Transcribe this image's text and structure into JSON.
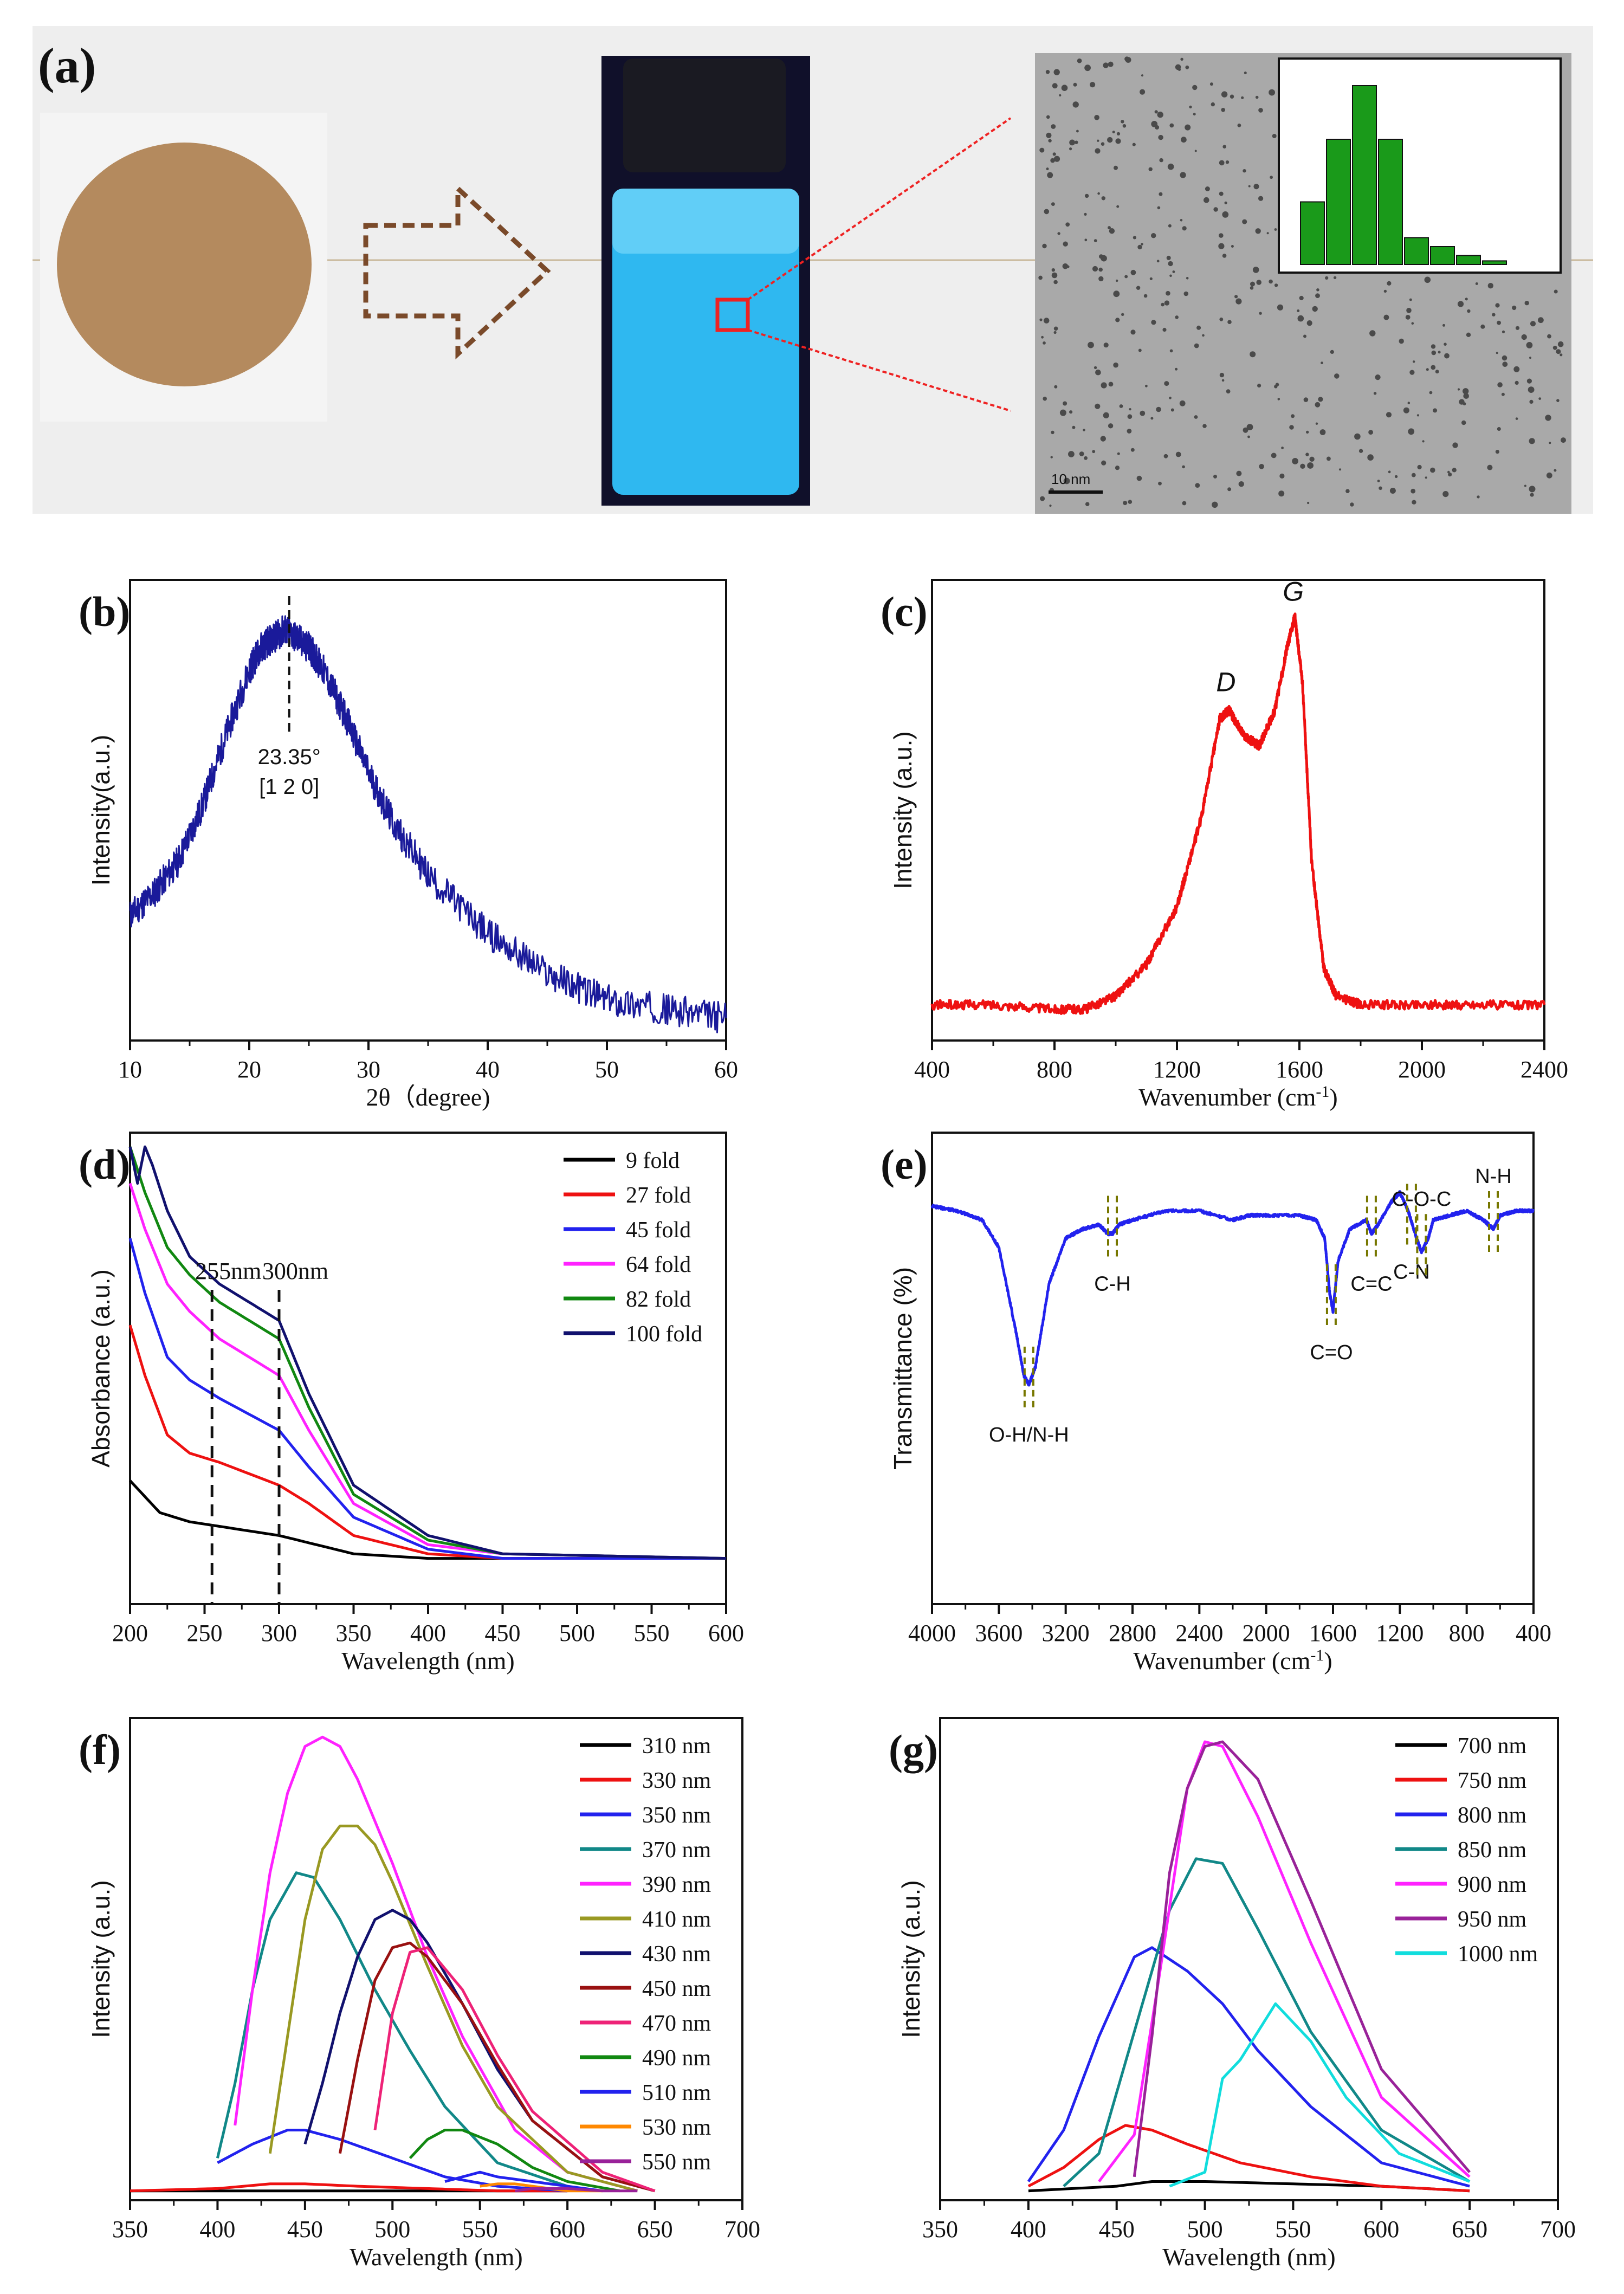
{
  "panel_a": {
    "label": "(a)",
    "tem_scale_text": "10 nm",
    "colors": {
      "powder": "#b48a5e",
      "vial_glow": "#2fb8f0",
      "arrow": "#7a4a2a",
      "bar": "#1a9a1a",
      "zoom": "#ee2222"
    },
    "histogram": {
      "values": [
        0.35,
        0.7,
        1.0,
        0.7,
        0.15,
        0.1,
        0.05,
        0.02
      ]
    }
  },
  "chart_data": [
    {
      "id": "b",
      "panel_label": "(b)",
      "type": "line",
      "xlabel": "2θ（degree)",
      "ylabel": "Intensity(a.u.)",
      "xlim": [
        10,
        60
      ],
      "x_ticks": [
        "10",
        "20",
        "30",
        "40",
        "50",
        "60"
      ],
      "annotation": {
        "x": 23.35,
        "text1": "23.35°",
        "text2": "[1 2 0]"
      },
      "series": [
        {
          "name": "XRD",
          "color": "#1a1a9a",
          "x": [
            10,
            12,
            14,
            16,
            18,
            20,
            21,
            22,
            23,
            24,
            25,
            26,
            28,
            30,
            32,
            35,
            40,
            45,
            50,
            55,
            60
          ],
          "y": [
            0.28,
            0.33,
            0.4,
            0.52,
            0.68,
            0.83,
            0.88,
            0.9,
            0.92,
            0.9,
            0.88,
            0.84,
            0.73,
            0.6,
            0.49,
            0.37,
            0.24,
            0.15,
            0.09,
            0.07,
            0.05
          ]
        }
      ]
    },
    {
      "id": "c",
      "panel_label": "(c)",
      "type": "line",
      "xlabel": "Wavenumber (cm",
      "xlabel_sup": "-1",
      "xlabel_end": ")",
      "ylabel": "Intensity (a.u.)",
      "xlim": [
        400,
        2400
      ],
      "x_ticks": [
        "400",
        "800",
        "1200",
        "1600",
        "2000",
        "2400"
      ],
      "peak_labels": [
        {
          "text": "D",
          "x": 1360
        },
        {
          "text": "G",
          "x": 1580
        }
      ],
      "series": [
        {
          "name": "Raman",
          "color": "#ee1111",
          "x": [
            400,
            600,
            800,
            900,
            1000,
            1100,
            1200,
            1280,
            1340,
            1370,
            1420,
            1470,
            1520,
            1560,
            1585,
            1610,
            1640,
            1680,
            1720,
            1800,
            2000,
            2200,
            2400
          ],
          "y": [
            0.08,
            0.08,
            0.07,
            0.07,
            0.1,
            0.17,
            0.3,
            0.5,
            0.72,
            0.74,
            0.68,
            0.66,
            0.74,
            0.88,
            0.95,
            0.8,
            0.4,
            0.16,
            0.1,
            0.08,
            0.08,
            0.08,
            0.08
          ]
        }
      ]
    },
    {
      "id": "d",
      "panel_label": "(d)",
      "type": "line",
      "xlabel": "Wavelength (nm)",
      "ylabel": "Absorbance (a.u.)",
      "xlim": [
        200,
        600
      ],
      "x_ticks": [
        "200",
        "250",
        "300",
        "350",
        "400",
        "450",
        "500",
        "550",
        "600"
      ],
      "annotations": [
        {
          "x": 255,
          "text": "255nm"
        },
        {
          "x": 300,
          "text": "300nm"
        }
      ],
      "series": [
        {
          "name": "9 fold",
          "color": "#000000",
          "x": [
            200,
            220,
            240,
            260,
            300,
            350,
            400,
            450,
            500,
            600
          ],
          "y": [
            0.27,
            0.2,
            0.18,
            0.17,
            0.15,
            0.11,
            0.1,
            0.1,
            0.1,
            0.1
          ]
        },
        {
          "name": "27 fold",
          "color": "#ee1111",
          "x": [
            200,
            210,
            225,
            240,
            260,
            300,
            320,
            350,
            400,
            450,
            600
          ],
          "y": [
            0.61,
            0.5,
            0.37,
            0.33,
            0.31,
            0.26,
            0.22,
            0.15,
            0.11,
            0.1,
            0.1
          ]
        },
        {
          "name": "45 fold",
          "color": "#2222ee",
          "x": [
            200,
            210,
            225,
            240,
            260,
            300,
            320,
            350,
            400,
            450,
            600
          ],
          "y": [
            0.8,
            0.68,
            0.54,
            0.49,
            0.45,
            0.38,
            0.3,
            0.19,
            0.12,
            0.1,
            0.1
          ]
        },
        {
          "name": "64 fold",
          "color": "#ff22ff",
          "x": [
            200,
            210,
            225,
            240,
            260,
            300,
            320,
            350,
            400,
            450,
            600
          ],
          "y": [
            0.92,
            0.82,
            0.7,
            0.64,
            0.58,
            0.5,
            0.38,
            0.22,
            0.13,
            0.11,
            0.1
          ]
        },
        {
          "name": "82 fold",
          "color": "#118811",
          "x": [
            200,
            210,
            225,
            240,
            260,
            300,
            320,
            350,
            400,
            450,
            600
          ],
          "y": [
            1.0,
            0.9,
            0.78,
            0.72,
            0.66,
            0.58,
            0.43,
            0.24,
            0.14,
            0.11,
            0.1
          ]
        },
        {
          "name": "100 fold",
          "color": "#11116e",
          "x": [
            200,
            205,
            210,
            215,
            225,
            240,
            260,
            300,
            320,
            350,
            400,
            450,
            600
          ],
          "y": [
            1.0,
            0.92,
            1.0,
            0.96,
            0.86,
            0.76,
            0.7,
            0.62,
            0.46,
            0.26,
            0.15,
            0.11,
            0.1
          ]
        }
      ]
    },
    {
      "id": "e",
      "panel_label": "(e)",
      "type": "line",
      "xlabel": "Wavenumber (cm",
      "xlabel_sup": "-1",
      "xlabel_end": ")",
      "ylabel": "Transmittance (%)",
      "xlim": [
        4000,
        400
      ],
      "x_ticks": [
        "4000",
        "3600",
        "3200",
        "2800",
        "2400",
        "2000",
        "1600",
        "1200",
        "800",
        "400"
      ],
      "peak_labels": [
        {
          "text": "O-H/N-H",
          "x": 3420,
          "pos": "below"
        },
        {
          "text": "C-H",
          "x": 2920,
          "pos": "below"
        },
        {
          "text": "C=O",
          "x": 1610,
          "pos": "below"
        },
        {
          "text": "C=C",
          "x": 1370,
          "pos": "below"
        },
        {
          "text": "C-N",
          "x": 1130,
          "pos": "below"
        },
        {
          "text": "C-O-C",
          "x": 1070,
          "pos": "above"
        },
        {
          "text": "N-H",
          "x": 640,
          "pos": "above"
        }
      ],
      "series": [
        {
          "name": "FTIR",
          "color": "#2222ee",
          "x": [
            4000,
            3850,
            3700,
            3600,
            3500,
            3450,
            3420,
            3380,
            3300,
            3200,
            3100,
            3000,
            2950,
            2920,
            2880,
            2800,
            2600,
            2400,
            2200,
            2100,
            2000,
            1800,
            1700,
            1650,
            1620,
            1600,
            1570,
            1500,
            1400,
            1370,
            1330,
            1250,
            1200,
            1150,
            1100,
            1070,
            1030,
            1000,
            900,
            800,
            700,
            640,
            600,
            500,
            400
          ],
          "y": [
            0.87,
            0.86,
            0.84,
            0.78,
            0.6,
            0.5,
            0.48,
            0.52,
            0.7,
            0.8,
            0.82,
            0.83,
            0.81,
            0.81,
            0.83,
            0.84,
            0.86,
            0.86,
            0.84,
            0.85,
            0.85,
            0.85,
            0.84,
            0.8,
            0.68,
            0.64,
            0.75,
            0.82,
            0.84,
            0.81,
            0.83,
            0.88,
            0.9,
            0.86,
            0.8,
            0.77,
            0.8,
            0.84,
            0.85,
            0.86,
            0.84,
            0.82,
            0.85,
            0.86,
            0.86
          ]
        }
      ]
    },
    {
      "id": "f",
      "panel_label": "(f)",
      "type": "line",
      "xlabel": "Wavelength (nm)",
      "ylabel": "Intensity (a.u.)",
      "xlim": [
        350,
        700
      ],
      "x_ticks": [
        "350",
        "400",
        "450",
        "500",
        "550",
        "600",
        "650",
        "700"
      ],
      "series": [
        {
          "name": "310 nm",
          "color": "#000000",
          "x": [
            350,
            400,
            450,
            500,
            550,
            600
          ],
          "y": [
            0.02,
            0.02,
            0.02,
            0.02,
            0.02,
            0.02
          ]
        },
        {
          "name": "330 nm",
          "color": "#ee1111",
          "x": [
            350,
            400,
            430,
            450,
            480,
            520,
            560,
            600
          ],
          "y": [
            0.02,
            0.025,
            0.035,
            0.035,
            0.03,
            0.025,
            0.02,
            0.02
          ]
        },
        {
          "name": "350 nm",
          "color": "#2222ee",
          "x": [
            400,
            420,
            440,
            450,
            470,
            500,
            530,
            560,
            600
          ],
          "y": [
            0.08,
            0.12,
            0.15,
            0.15,
            0.13,
            0.09,
            0.05,
            0.03,
            0.02
          ]
        },
        {
          "name": "370 nm",
          "color": "#118888",
          "x": [
            400,
            410,
            420,
            430,
            445,
            455,
            470,
            490,
            510,
            530,
            560,
            600
          ],
          "y": [
            0.09,
            0.25,
            0.45,
            0.6,
            0.7,
            0.69,
            0.6,
            0.45,
            0.32,
            0.2,
            0.08,
            0.03
          ]
        },
        {
          "name": "390 nm",
          "color": "#ff22ff",
          "x": [
            410,
            420,
            430,
            440,
            450,
            460,
            470,
            480,
            500,
            520,
            540,
            570,
            600,
            640
          ],
          "y": [
            0.16,
            0.45,
            0.7,
            0.87,
            0.97,
            0.99,
            0.97,
            0.9,
            0.72,
            0.52,
            0.35,
            0.15,
            0.06,
            0.02
          ]
        },
        {
          "name": "410 nm",
          "color": "#999922",
          "x": [
            430,
            440,
            450,
            460,
            470,
            480,
            490,
            500,
            520,
            540,
            560,
            600,
            640
          ],
          "y": [
            0.1,
            0.35,
            0.6,
            0.75,
            0.8,
            0.8,
            0.76,
            0.68,
            0.5,
            0.33,
            0.2,
            0.06,
            0.02
          ]
        },
        {
          "name": "430 nm",
          "color": "#11116e",
          "x": [
            450,
            460,
            470,
            480,
            490,
            500,
            510,
            520,
            540,
            560,
            580,
            620,
            650
          ],
          "y": [
            0.12,
            0.25,
            0.4,
            0.52,
            0.6,
            0.62,
            0.6,
            0.55,
            0.42,
            0.28,
            0.17,
            0.05,
            0.02
          ]
        },
        {
          "name": "450 nm",
          "color": "#991111",
          "x": [
            470,
            480,
            490,
            500,
            510,
            520,
            540,
            560,
            580,
            620,
            650
          ],
          "y": [
            0.1,
            0.3,
            0.47,
            0.54,
            0.55,
            0.52,
            0.42,
            0.29,
            0.17,
            0.05,
            0.02
          ]
        },
        {
          "name": "470 nm",
          "color": "#ee2277",
          "x": [
            490,
            500,
            510,
            520,
            540,
            560,
            580,
            620,
            650
          ],
          "y": [
            0.15,
            0.4,
            0.53,
            0.54,
            0.45,
            0.31,
            0.19,
            0.06,
            0.02
          ]
        },
        {
          "name": "490 nm",
          "color": "#118811",
          "x": [
            510,
            520,
            530,
            540,
            560,
            580,
            600,
            630
          ],
          "y": [
            0.09,
            0.13,
            0.15,
            0.15,
            0.12,
            0.07,
            0.04,
            0.02
          ]
        },
        {
          "name": "510 nm",
          "color": "#2222ee",
          "x": [
            530,
            540,
            550,
            560,
            580,
            600,
            620
          ],
          "y": [
            0.04,
            0.05,
            0.06,
            0.05,
            0.04,
            0.03,
            0.02
          ]
        },
        {
          "name": "530 nm",
          "color": "#ff8800",
          "x": [
            550,
            560,
            570,
            580,
            600,
            620
          ],
          "y": [
            0.03,
            0.035,
            0.035,
            0.03,
            0.02,
            0.02
          ]
        },
        {
          "name": "550 nm",
          "color": "#992299",
          "x": [
            570,
            580,
            600,
            620,
            640
          ],
          "y": [
            0.02,
            0.025,
            0.025,
            0.02,
            0.02
          ]
        }
      ]
    },
    {
      "id": "g",
      "panel_label": "(g)",
      "type": "line",
      "xlabel": "Wavelength (nm)",
      "ylabel": "Intensity (a.u.)",
      "xlim": [
        350,
        700
      ],
      "x_ticks": [
        "350",
        "400",
        "450",
        "500",
        "550",
        "600",
        "650",
        "700"
      ],
      "series": [
        {
          "name": "700 nm",
          "color": "#000000",
          "x": [
            400,
            450,
            470,
            500,
            550,
            600,
            650
          ],
          "y": [
            0.02,
            0.03,
            0.04,
            0.04,
            0.035,
            0.03,
            0.02
          ]
        },
        {
          "name": "750 nm",
          "color": "#ee1111",
          "x": [
            400,
            420,
            440,
            455,
            470,
            490,
            520,
            560,
            600,
            650
          ],
          "y": [
            0.03,
            0.07,
            0.13,
            0.16,
            0.15,
            0.12,
            0.08,
            0.05,
            0.03,
            0.02
          ]
        },
        {
          "name": "800 nm",
          "color": "#2222ee",
          "x": [
            400,
            420,
            440,
            460,
            470,
            490,
            510,
            530,
            560,
            600,
            650
          ],
          "y": [
            0.04,
            0.15,
            0.35,
            0.52,
            0.54,
            0.49,
            0.42,
            0.32,
            0.2,
            0.08,
            0.03
          ]
        },
        {
          "name": "850 nm",
          "color": "#118888",
          "x": [
            420,
            440,
            460,
            480,
            495,
            510,
            530,
            560,
            600,
            650
          ],
          "y": [
            0.03,
            0.1,
            0.36,
            0.62,
            0.73,
            0.72,
            0.58,
            0.36,
            0.15,
            0.04
          ]
        },
        {
          "name": "900 nm",
          "color": "#ff22ff",
          "x": [
            440,
            460,
            475,
            490,
            500,
            510,
            530,
            560,
            600,
            650
          ],
          "y": [
            0.04,
            0.14,
            0.5,
            0.88,
            0.98,
            0.97,
            0.82,
            0.55,
            0.22,
            0.05
          ]
        },
        {
          "name": "950 nm",
          "color": "#992299",
          "x": [
            460,
            470,
            480,
            490,
            500,
            510,
            530,
            560,
            600,
            650
          ],
          "y": [
            0.05,
            0.35,
            0.7,
            0.88,
            0.97,
            0.98,
            0.9,
            0.64,
            0.28,
            0.06
          ]
        },
        {
          "name": "1000 nm",
          "color": "#11dddd",
          "x": [
            480,
            500,
            510,
            520,
            530,
            540,
            560,
            580,
            610,
            650
          ],
          "y": [
            0.03,
            0.06,
            0.26,
            0.3,
            0.36,
            0.42,
            0.34,
            0.22,
            0.1,
            0.04
          ]
        }
      ]
    }
  ]
}
